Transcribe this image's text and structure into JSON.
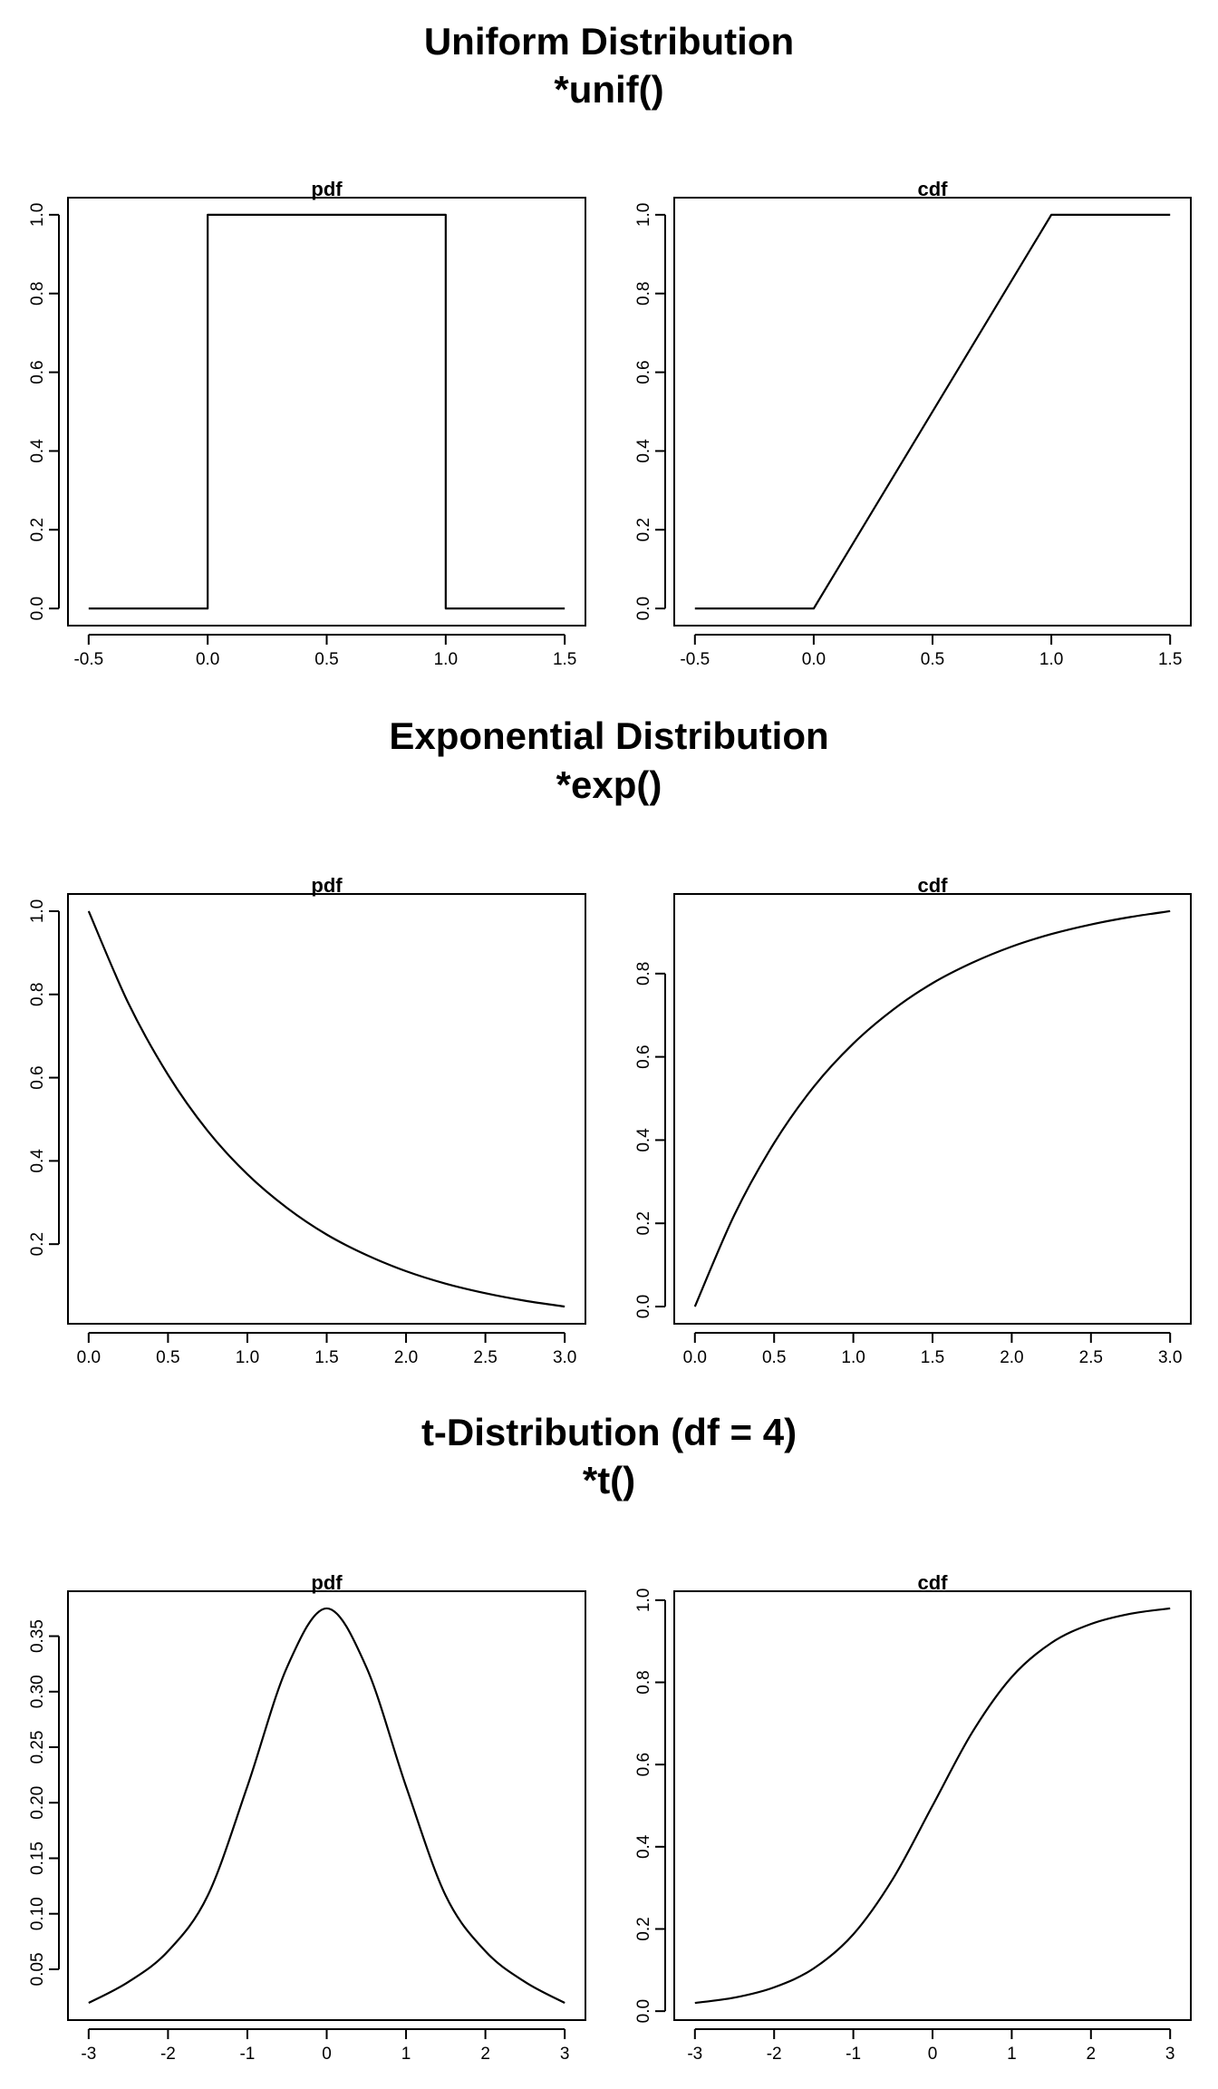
{
  "sections": [
    {
      "title": "Uniform Distribution",
      "subtitle": "*unif()"
    },
    {
      "title": "Exponential Distribution",
      "subtitle": "*exp()"
    },
    {
      "title": "t-Distribution (df = 4)",
      "subtitle": "*t()"
    }
  ],
  "chart_data": [
    {
      "type": "line",
      "title": "pdf",
      "x": [
        -0.5,
        0.0,
        0.0,
        1.0,
        1.0,
        1.5
      ],
      "series": [
        {
          "values": [
            0,
            0,
            1,
            1,
            0,
            0
          ]
        }
      ],
      "xlim": [
        -0.5,
        1.5
      ],
      "ylim": [
        0,
        1
      ],
      "xticks": [
        -0.5,
        0.0,
        0.5,
        1.0,
        1.5
      ],
      "xtick_labels": [
        "-0.5",
        "0.0",
        "0.5",
        "1.0",
        "1.5"
      ],
      "yticks": [
        0,
        0.2,
        0.4,
        0.6,
        0.8,
        1.0
      ],
      "ytick_labels": [
        "0.0",
        "0.2",
        "0.4",
        "0.6",
        "0.8",
        "1.0"
      ],
      "grid": false,
      "legend": "none"
    },
    {
      "type": "line",
      "title": "cdf",
      "x": [
        -0.5,
        0.0,
        1.0,
        1.5
      ],
      "series": [
        {
          "values": [
            0,
            0,
            1,
            1
          ]
        }
      ],
      "xlim": [
        -0.5,
        1.5
      ],
      "ylim": [
        0,
        1
      ],
      "xticks": [
        -0.5,
        0.0,
        0.5,
        1.0,
        1.5
      ],
      "xtick_labels": [
        "-0.5",
        "0.0",
        "0.5",
        "1.0",
        "1.5"
      ],
      "yticks": [
        0,
        0.2,
        0.4,
        0.6,
        0.8,
        1.0
      ],
      "ytick_labels": [
        "0.0",
        "0.2",
        "0.4",
        "0.6",
        "0.8",
        "1.0"
      ],
      "grid": false,
      "legend": "none"
    },
    {
      "type": "line",
      "title": "pdf",
      "x": [
        0,
        0.25,
        0.5,
        0.75,
        1.0,
        1.25,
        1.5,
        1.75,
        2.0,
        2.25,
        2.5,
        2.75,
        3.0
      ],
      "series": [
        {
          "values": [
            1.0,
            0.779,
            0.607,
            0.472,
            0.368,
            0.287,
            0.223,
            0.174,
            0.135,
            0.105,
            0.082,
            0.064,
            0.05
          ]
        }
      ],
      "xlim": [
        0,
        3
      ],
      "ylim": [
        0.05,
        1.0
      ],
      "xticks": [
        0,
        0.5,
        1.0,
        1.5,
        2.0,
        2.5,
        3.0
      ],
      "xtick_labels": [
        "0.0",
        "0.5",
        "1.0",
        "1.5",
        "2.0",
        "2.5",
        "3.0"
      ],
      "yticks": [
        0.2,
        0.4,
        0.6,
        0.8,
        1.0
      ],
      "ytick_labels": [
        "0.2",
        "0.4",
        "0.6",
        "0.8",
        "1.0"
      ],
      "grid": false,
      "legend": "none"
    },
    {
      "type": "line",
      "title": "cdf",
      "x": [
        0,
        0.25,
        0.5,
        0.75,
        1.0,
        1.25,
        1.5,
        1.75,
        2.0,
        2.25,
        2.5,
        2.75,
        3.0
      ],
      "series": [
        {
          "values": [
            0.0,
            0.221,
            0.393,
            0.528,
            0.632,
            0.713,
            0.777,
            0.826,
            0.865,
            0.895,
            0.918,
            0.936,
            0.95
          ]
        }
      ],
      "xlim": [
        0,
        3
      ],
      "ylim": [
        0,
        0.95
      ],
      "xticks": [
        0,
        0.5,
        1.0,
        1.5,
        2.0,
        2.5,
        3.0
      ],
      "xtick_labels": [
        "0.0",
        "0.5",
        "1.0",
        "1.5",
        "2.0",
        "2.5",
        "3.0"
      ],
      "yticks": [
        0,
        0.2,
        0.4,
        0.6,
        0.8
      ],
      "ytick_labels": [
        "0.0",
        "0.2",
        "0.4",
        "0.6",
        "0.8"
      ],
      "grid": false,
      "legend": "none"
    },
    {
      "type": "line",
      "title": "pdf",
      "x": [
        -3,
        -2.5,
        -2,
        -1.5,
        -1,
        -0.5,
        0,
        0.5,
        1,
        1.5,
        2,
        2.5,
        3
      ],
      "series": [
        {
          "values": [
            0.0197,
            0.0386,
            0.0663,
            0.1163,
            0.2147,
            0.322,
            0.375,
            0.322,
            0.2147,
            0.1163,
            0.0663,
            0.0386,
            0.0197
          ]
        }
      ],
      "xlim": [
        -3,
        3
      ],
      "ylim": [
        0.0197,
        0.375
      ],
      "xticks": [
        -3,
        -2,
        -1,
        0,
        1,
        2,
        3
      ],
      "xtick_labels": [
        "-3",
        "-2",
        "-1",
        "0",
        "1",
        "2",
        "3"
      ],
      "yticks": [
        0.05,
        0.1,
        0.15,
        0.2,
        0.25,
        0.3,
        0.35
      ],
      "ytick_labels": [
        "0.05",
        "0.10",
        "0.15",
        "0.20",
        "0.25",
        "0.30",
        "0.35"
      ],
      "grid": false,
      "legend": "none"
    },
    {
      "type": "line",
      "title": "cdf",
      "x": [
        -3,
        -2.5,
        -2,
        -1.5,
        -1,
        -0.5,
        0,
        0.5,
        1,
        1.5,
        2,
        2.5,
        3
      ],
      "series": [
        {
          "values": [
            0.02,
            0.033,
            0.058,
            0.104,
            0.187,
            0.322,
            0.5,
            0.678,
            0.813,
            0.896,
            0.942,
            0.967,
            0.98
          ]
        }
      ],
      "xlim": [
        -3,
        3
      ],
      "ylim": [
        0.02,
        0.98
      ],
      "xticks": [
        -3,
        -2,
        -1,
        0,
        1,
        2,
        3
      ],
      "xtick_labels": [
        "-3",
        "-2",
        "-1",
        "0",
        "1",
        "2",
        "3"
      ],
      "yticks": [
        0,
        0.2,
        0.4,
        0.6,
        0.8,
        1.0
      ],
      "ytick_labels": [
        "0.0",
        "0.2",
        "0.4",
        "0.6",
        "0.8",
        "1.0"
      ],
      "grid": false,
      "legend": "none"
    }
  ]
}
